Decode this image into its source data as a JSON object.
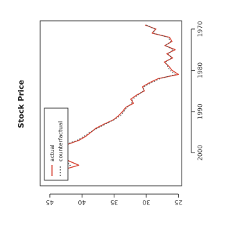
{
  "chart_data": {
    "type": "line",
    "title": "Stock Price",
    "xlabel": "",
    "ylabel": "",
    "x_ticks": [
      1970,
      1980,
      1990,
      2000
    ],
    "y_ticks": [
      25,
      30,
      35,
      40,
      45
    ],
    "xlim": [
      1968,
      2008
    ],
    "ylim": [
      24.5,
      46.5
    ],
    "legend": {
      "position": "top-left",
      "entries": [
        "actual",
        "counterfactual"
      ]
    },
    "grid": false,
    "series": [
      {
        "name": "actual",
        "color": "#d94a3a",
        "line_style": "solid",
        "x": [
          1969,
          1970,
          1971,
          1972,
          1973,
          1974,
          1975,
          1976,
          1977,
          1978,
          1979,
          1980,
          1981,
          1982,
          1983,
          1984,
          1985,
          1986,
          1987,
          1988,
          1989,
          1990,
          1991,
          1992,
          1993,
          1994,
          1995,
          1996,
          1997,
          1998,
          1999,
          2000,
          2001,
          2002,
          2003,
          2004,
          2005,
          2006
        ],
        "y": [
          30.2,
          28.5,
          29.1,
          26.4,
          26.0,
          27.1,
          25.5,
          26.8,
          25.9,
          27.2,
          26.5,
          26.0,
          25.0,
          28.1,
          29.5,
          30.6,
          30.3,
          31.5,
          32.4,
          32.0,
          33.2,
          33.7,
          34.3,
          35.1,
          36.5,
          37.8,
          38.6,
          39.4,
          40.5,
          42.3,
          43.7,
          44.3,
          43.2,
          42.0,
          40.5,
          42.7,
          43.4,
          44.1
        ]
      },
      {
        "name": "counterfactual",
        "color": "#555555",
        "line_style": "dashed",
        "x": [
          1969,
          1970,
          1971,
          1972,
          1973,
          1974,
          1975,
          1976,
          1977,
          1978,
          1979,
          1980,
          1981,
          1982,
          1983,
          1984,
          1985,
          1986,
          1987,
          1988,
          1989,
          1990,
          1991,
          1992,
          1993,
          1994,
          1995,
          1996,
          1997,
          1998,
          1999,
          2000,
          2001,
          2002,
          2003,
          2004,
          2005,
          2006
        ],
        "y": [
          30.0,
          28.7,
          28.9,
          26.6,
          26.2,
          27.0,
          25.8,
          26.6,
          26.1,
          27.0,
          26.7,
          26.3,
          25.5,
          27.8,
          29.2,
          30.4,
          30.5,
          31.3,
          32.1,
          32.3,
          33.0,
          33.5,
          34.0,
          35.0,
          36.3,
          37.5,
          38.8,
          39.7,
          40.8,
          42.6,
          43.9,
          44.5,
          43.5,
          42.5,
          41.8,
          42.9,
          43.6,
          44.4
        ]
      }
    ]
  }
}
